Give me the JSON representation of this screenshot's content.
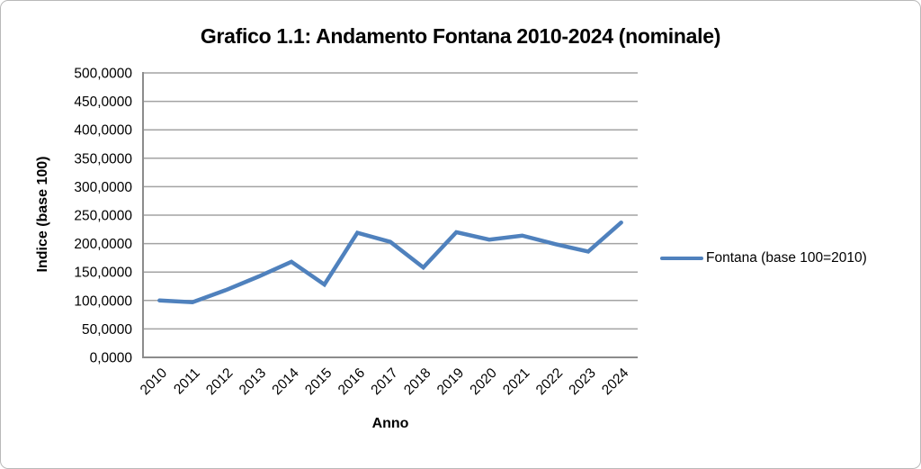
{
  "figure": {
    "title": "Grafico 1.1: Andamento Fontana 2010-2024 (nominale)",
    "x_axis_title": "Anno",
    "y_axis_title": "Indice (base 100)",
    "legend_label": "Fontana (base 100=2010)"
  },
  "colors": {
    "line": "#4F81BD",
    "grid": "#A3A3A3",
    "axis": "#8C8C8C",
    "text": "#000000",
    "background": "#FFFFFF",
    "outer_border": "#B9B9B9"
  },
  "chart_data": {
    "type": "line",
    "title": "Grafico 1.1: Andamento Fontana 2010-2024 (nominale)",
    "xlabel": "Anno",
    "ylabel": "Indice (base 100)",
    "categories": [
      "2010",
      "2011",
      "2012",
      "2013",
      "2014",
      "2015",
      "2016",
      "2017",
      "2018",
      "2019",
      "2020",
      "2021",
      "2022",
      "2023",
      "2024"
    ],
    "series": [
      {
        "name": "Fontana (base 100=2010)",
        "values": [
          100.0,
          97.0,
          118.0,
          142.0,
          168.0,
          128.0,
          219.0,
          203.0,
          158.0,
          220.0,
          207.0,
          214.0,
          199.0,
          186.0,
          237.0
        ]
      }
    ],
    "ylim": [
      0,
      500
    ],
    "y_tick_step": 50,
    "y_tick_labels": [
      "0,0000",
      "50,0000",
      "100,0000",
      "150,0000",
      "200,0000",
      "250,0000",
      "300,0000",
      "350,0000",
      "400,0000",
      "450,0000",
      "500,0000"
    ],
    "grid": "horizontal",
    "legend_position": "right",
    "x_tick_rotation_deg": -45
  }
}
